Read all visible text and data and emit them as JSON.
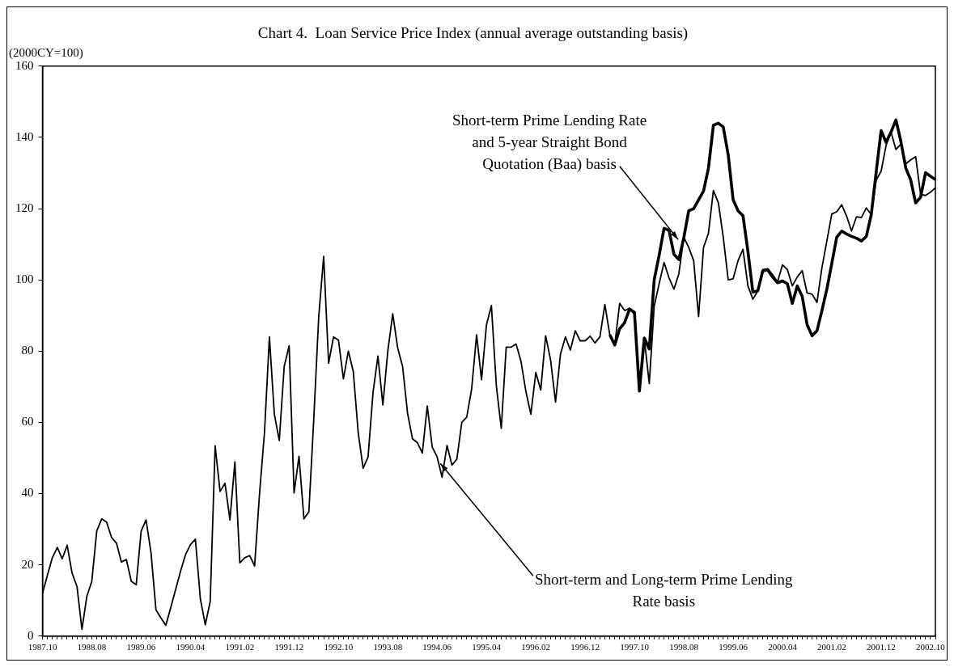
{
  "chart_data": {
    "type": "line",
    "title": "Chart 4.  Loan Service Price Index (annual average outstanding basis)",
    "ylabel": "(2000CY=100)",
    "categories": [
      "1987.10",
      null,
      null,
      null,
      null,
      null,
      null,
      null,
      null,
      null,
      "1988.08",
      null,
      null,
      null,
      null,
      null,
      null,
      null,
      null,
      null,
      "1989.06",
      null,
      null,
      null,
      null,
      null,
      null,
      null,
      null,
      null,
      "1990.04",
      null,
      null,
      null,
      null,
      null,
      null,
      null,
      null,
      null,
      "1991.02",
      null,
      null,
      null,
      null,
      null,
      null,
      null,
      null,
      null,
      "1991.12",
      null,
      null,
      null,
      null,
      null,
      null,
      null,
      null,
      null,
      "1992.10",
      null,
      null,
      null,
      null,
      null,
      null,
      null,
      null,
      null,
      "1993.08",
      null,
      null,
      null,
      null,
      null,
      null,
      null,
      null,
      null,
      "1994.06",
      null,
      null,
      null,
      null,
      null,
      null,
      null,
      null,
      null,
      "1995.04",
      null,
      null,
      null,
      null,
      null,
      null,
      null,
      null,
      null,
      "1996.02",
      null,
      null,
      null,
      null,
      null,
      null,
      null,
      null,
      null,
      "1996.12",
      null,
      null,
      null,
      null,
      null,
      null,
      null,
      null,
      null,
      "1997.10",
      null,
      null,
      null,
      null,
      null,
      null,
      null,
      null,
      null,
      "1998.08",
      null,
      null,
      null,
      null,
      null,
      null,
      null,
      null,
      null,
      "1999.06",
      null,
      null,
      null,
      null,
      null,
      null,
      null,
      null,
      null,
      "2000.04",
      null,
      null,
      null,
      null,
      null,
      null,
      null,
      null,
      null,
      "2001.02",
      null,
      null,
      null,
      null,
      null,
      null,
      null,
      null,
      null,
      "2001.12",
      null,
      null,
      null,
      null,
      null,
      null,
      null,
      null,
      null,
      "2002.10",
      null
    ],
    "series": [
      {
        "color": "#000000",
        "values": [
          12,
          17.1,
          22,
          24.9,
          21.7,
          25.5,
          17.7,
          13.9,
          1.9,
          11.2,
          15.4,
          29.5,
          32.9,
          32,
          27.7,
          26.1,
          20.8,
          21.5,
          15.4,
          14.4,
          29.5,
          32.6,
          23.4,
          7.4,
          5.1,
          3,
          8,
          13.1,
          18.3,
          22.9,
          25.7,
          27.2,
          10.5,
          3.2,
          9.7,
          53.4,
          40.6,
          42.9,
          32.6,
          48.9,
          20.6,
          22,
          22.6,
          19.7,
          40,
          57.1,
          84,
          62.3,
          54.9,
          75.7,
          81.5,
          40.2,
          50.5,
          32.9,
          34.9,
          61.1,
          89.7,
          106.6,
          76.6,
          84,
          83.1,
          72.2,
          80,
          74.3,
          57.1,
          47.1,
          50.3,
          68.3,
          78.6,
          64.9,
          80,
          90.5,
          80.9,
          75.7,
          62.6,
          55.4,
          54.3,
          51.4,
          64.6,
          53.1,
          50.3,
          44.6,
          53.5,
          48,
          49.7,
          60,
          61.5,
          69.4,
          84.6,
          72,
          87.4,
          92.8,
          70.3,
          58.3,
          81.1,
          81.1,
          82,
          77.1,
          68.6,
          62.3,
          74,
          69.1,
          84.3,
          77.5,
          65.7,
          79.1,
          84,
          80.3,
          85.7,
          82.9,
          82.9,
          84.2,
          82.3,
          84,
          93.1,
          84.6,
          81.7,
          93.4,
          91.4,
          92,
          90.3,
          68.8,
          83.4,
          70.9,
          92.6,
          98.9,
          104.9,
          100.6,
          97.4,
          101.7,
          112,
          109.1,
          105.4,
          89.7,
          109.1,
          113.1,
          125.1,
          121.7,
          112,
          100,
          100.3,
          105.4,
          108.6,
          98.3,
          94.6,
          96.9,
          102.9,
          103.1,
          101.5,
          99.4,
          104.2,
          102.9,
          98.3,
          100.8,
          102.6,
          96.3,
          96,
          93.7,
          103.4,
          110.9,
          118.5,
          119.1,
          121.1,
          117.9,
          113.7,
          117.7,
          117.5,
          120.2,
          118.3,
          128,
          130.5,
          137.7,
          141.5,
          136.6,
          138.1,
          132.6,
          133.7,
          134.6,
          124,
          123.7,
          124.6,
          125.9
        ]
      },
      {
        "color": "#000000",
        "values": [
          null,
          null,
          null,
          null,
          null,
          null,
          null,
          null,
          null,
          null,
          null,
          null,
          null,
          null,
          null,
          null,
          null,
          null,
          null,
          null,
          null,
          null,
          null,
          null,
          null,
          null,
          null,
          null,
          null,
          null,
          null,
          null,
          null,
          null,
          null,
          null,
          null,
          null,
          null,
          null,
          null,
          null,
          null,
          null,
          null,
          null,
          null,
          null,
          null,
          null,
          null,
          null,
          null,
          null,
          null,
          null,
          null,
          null,
          null,
          null,
          null,
          null,
          null,
          null,
          null,
          null,
          null,
          null,
          null,
          null,
          null,
          null,
          null,
          null,
          null,
          null,
          null,
          null,
          null,
          null,
          null,
          null,
          null,
          null,
          null,
          null,
          null,
          null,
          null,
          null,
          null,
          null,
          null,
          null,
          null,
          null,
          null,
          null,
          null,
          null,
          null,
          null,
          null,
          null,
          null,
          null,
          null,
          null,
          null,
          null,
          null,
          null,
          null,
          null,
          null,
          84.6,
          81.7,
          86.3,
          88,
          91.8,
          90.9,
          68.8,
          83.7,
          80.6,
          100,
          106.9,
          114.5,
          113.9,
          107.2,
          105.7,
          111.8,
          119.4,
          120,
          122.5,
          124.9,
          131.4,
          143.4,
          144,
          142.9,
          135.1,
          122.5,
          119.4,
          118,
          108,
          96.6,
          96.9,
          102.5,
          102.9,
          100.8,
          99.2,
          99.7,
          98.9,
          93.4,
          98.3,
          95.4,
          87.4,
          84.3,
          85.7,
          91.4,
          97.4,
          104.6,
          112,
          113.7,
          112.9,
          112.2,
          111.7,
          110.9,
          112.2,
          118.3,
          130.3,
          141.9,
          138.6,
          141.5,
          144.9,
          138.9,
          131.4,
          128,
          121.6,
          123.2,
          130.1,
          129.1,
          128.2
        ]
      }
    ],
    "annotations": [
      {
        "text": "Short-term Prime Lending Rate and 5-year Straight Bond Quotation (Baa) basis",
        "x": "1998.08",
        "y": 111.8
      },
      {
        "text": "Short-term and Long-term Prime Lending Rate basis",
        "x": "1994.06",
        "y": 50.3
      }
    ],
    "ylim": [
      0,
      160
    ],
    "yticks": [
      0,
      20,
      40,
      60,
      80,
      100,
      120,
      140,
      160
    ],
    "grid": false,
    "legend": false
  }
}
